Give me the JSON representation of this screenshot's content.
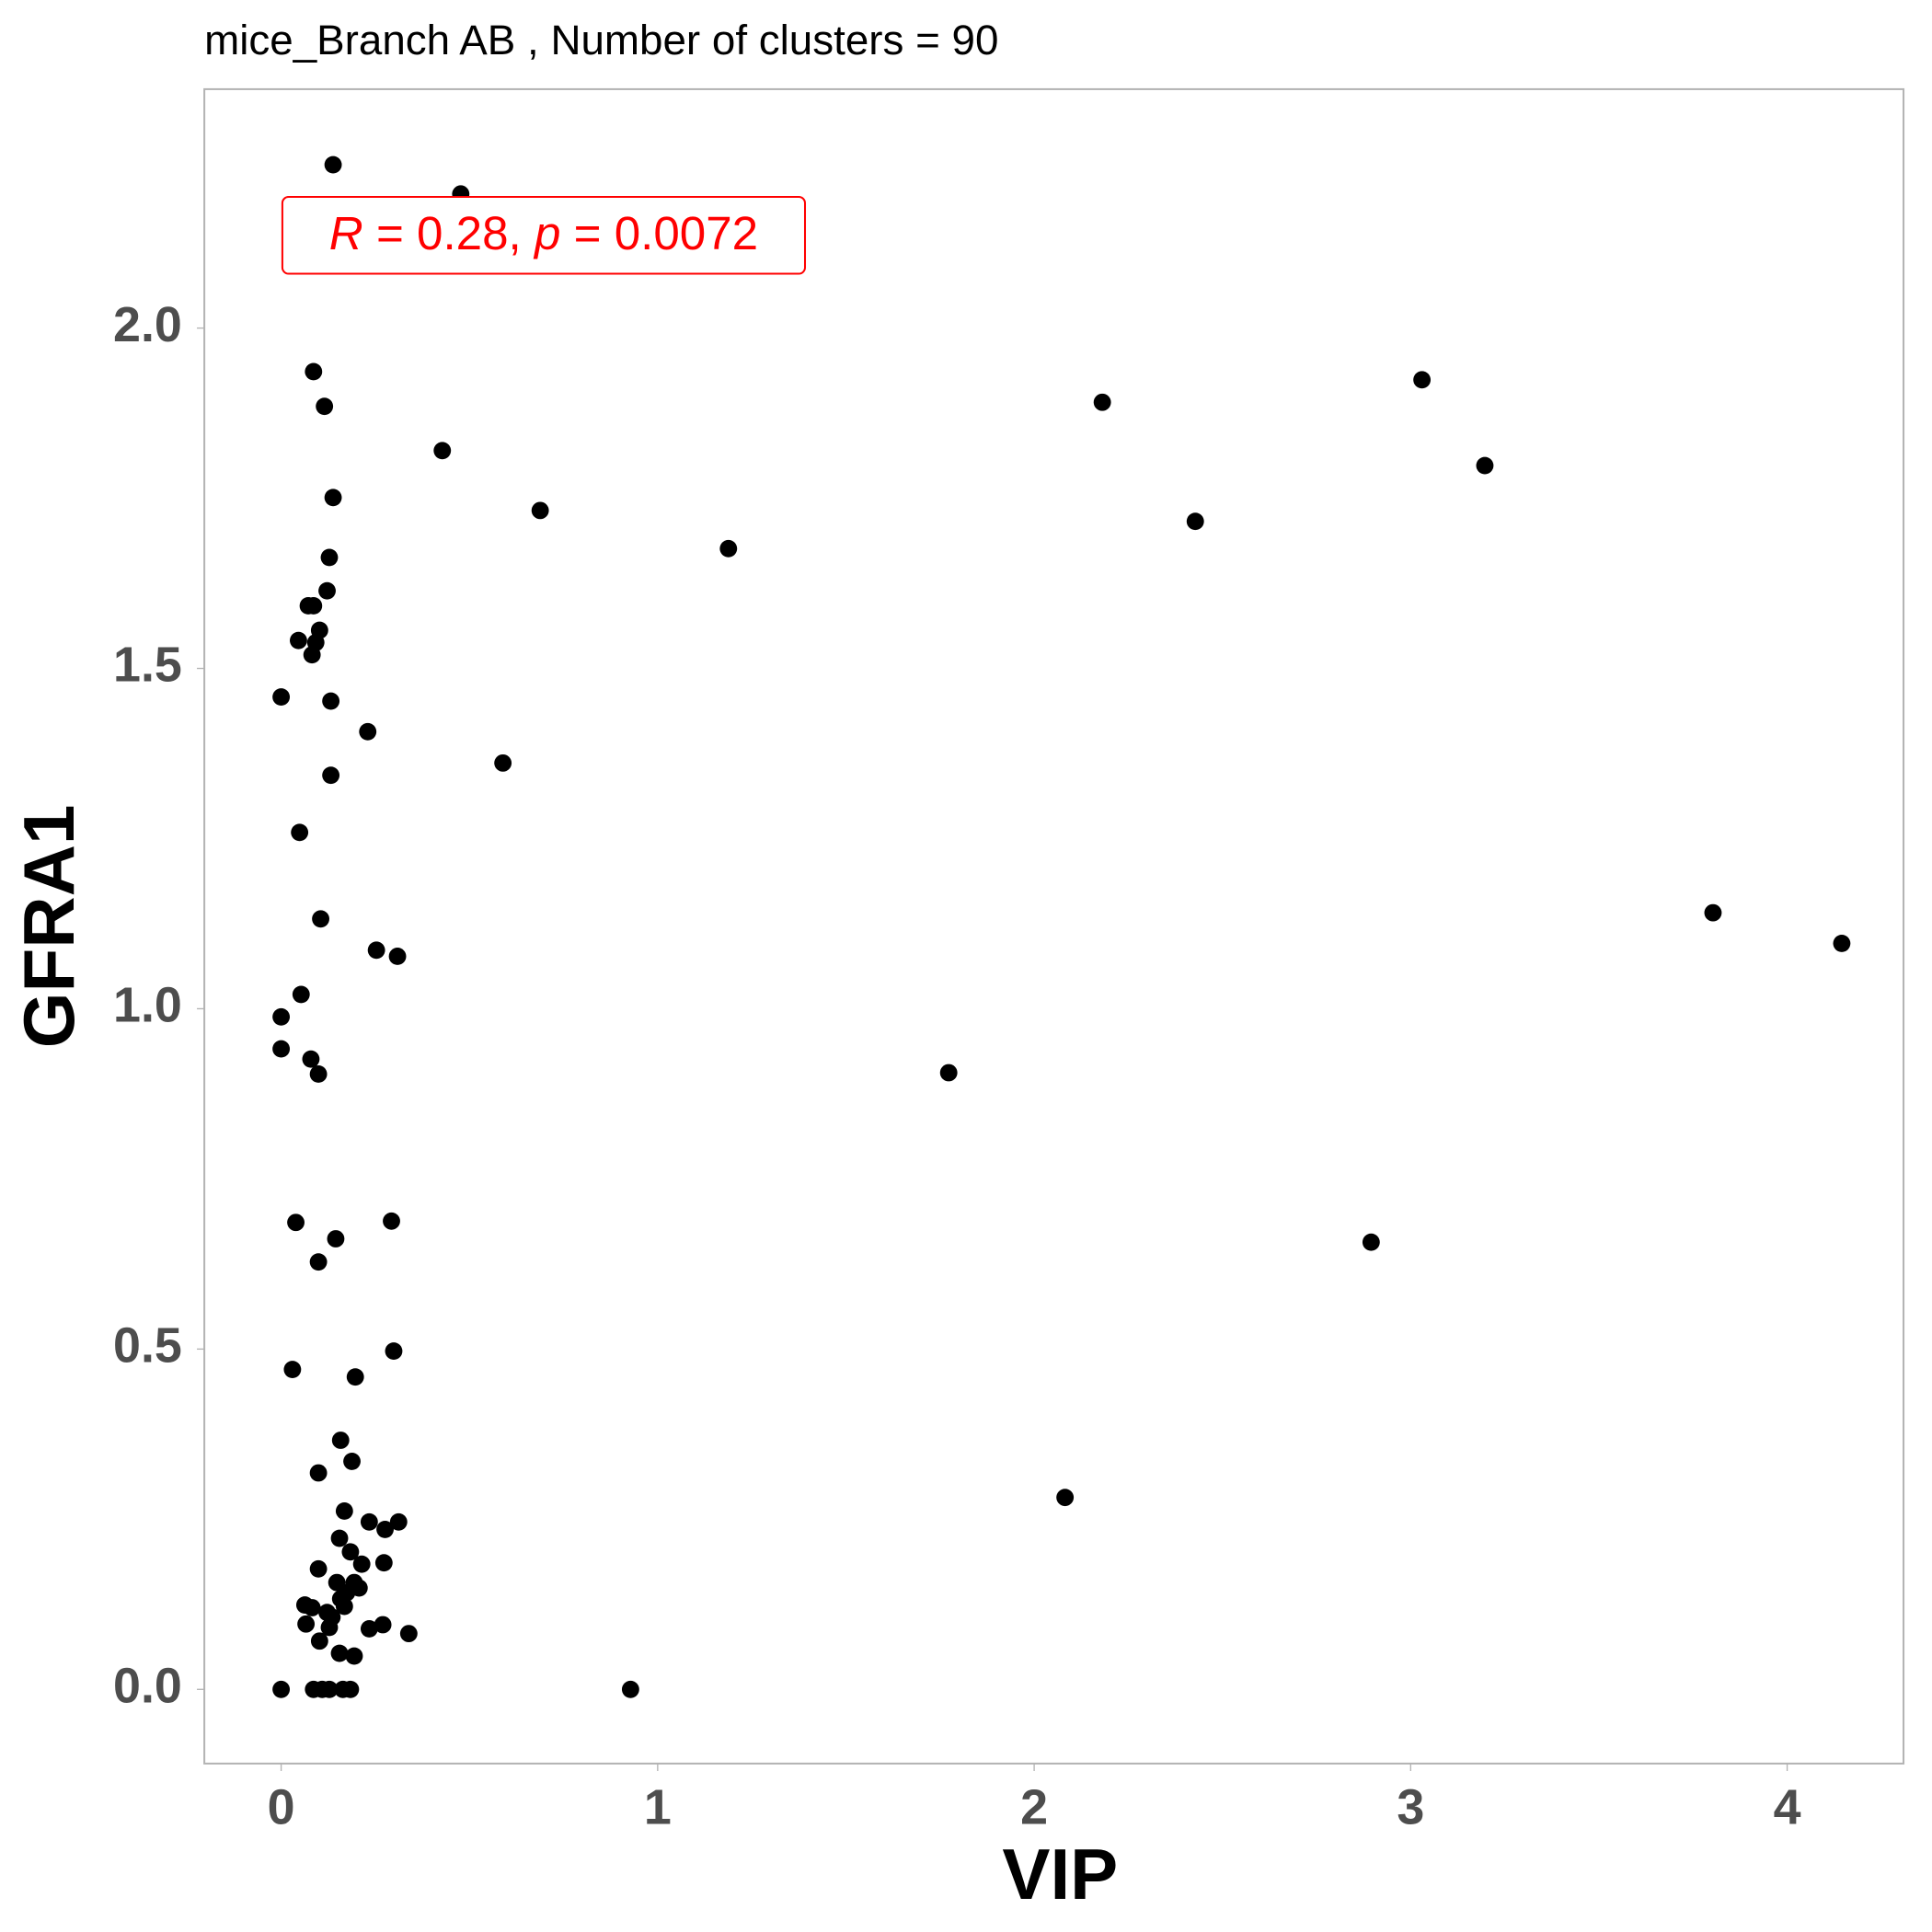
{
  "chart_data": {
    "type": "scatter",
    "title": "mice_Branch AB , Number of clusters =  90",
    "xlabel": "VIP",
    "ylabel": "GFRA1",
    "annotation": [
      "R",
      " = 0.28, ",
      "p",
      " = 0.0072"
    ],
    "annotation_color": "#ff0000",
    "color": "#000000",
    "grid": false,
    "xlim": [
      -0.204,
      4.309
    ],
    "ylim": [
      -0.109,
      2.351
    ],
    "xticks": [
      0,
      1,
      2,
      3,
      4
    ],
    "yticks": [
      {
        "value": 0,
        "label": "0.0"
      },
      {
        "value": 0.5,
        "label": "0.5"
      },
      {
        "value": 1,
        "label": "1.0"
      },
      {
        "value": 1.5,
        "label": "1.5"
      },
      {
        "value": 2,
        "label": "2.0"
      }
    ],
    "x": [
      0.138,
      0.477,
      0.086,
      0.115,
      0.428,
      0.138,
      0.688,
      1.188,
      0.128,
      0.122,
      0.072,
      0.086,
      0.102,
      0.046,
      0.092,
      0.082,
      0,
      0.132,
      0.23,
      0.589,
      0.132,
      0.049,
      0.105,
      0.253,
      0.309,
      0.053,
      0,
      0,
      0.079,
      0.099,
      0.039,
      0.293,
      0.145,
      0.099,
      0.299,
      0.03,
      0.197,
      0.158,
      0.188,
      0.099,
      0.168,
      0.312,
      0.234,
      0.276,
      0.155,
      0.184,
      0.273,
      0.214,
      0.099,
      0.194,
      0.148,
      0.207,
      0.174,
      0.158,
      0.063,
      0.082,
      0.168,
      0.122,
      0.066,
      0.135,
      0.128,
      0.27,
      0.234,
      0.339,
      0.102,
      0.155,
      0.194,
      0,
      0.086,
      0.109,
      0.128,
      0.164,
      0.184,
      0.928,
      2.181,
      2.428,
      3.03,
      3.197,
      3.803,
      4.145,
      1.773,
      2.895,
      2.082
    ],
    "y": [
      2.24,
      2.197,
      1.936,
      1.885,
      1.82,
      1.751,
      1.732,
      1.676,
      1.663,
      1.614,
      1.592,
      1.592,
      1.556,
      1.541,
      1.538,
      1.52,
      1.458,
      1.452,
      1.407,
      1.361,
      1.343,
      1.259,
      1.132,
      1.086,
      1.077,
      1.021,
      0.988,
      0.941,
      0.926,
      0.904,
      0.686,
      0.688,
      0.662,
      0.628,
      0.497,
      0.47,
      0.459,
      0.366,
      0.335,
      0.318,
      0.262,
      0.246,
      0.246,
      0.235,
      0.222,
      0.202,
      0.186,
      0.184,
      0.177,
      0.157,
      0.157,
      0.149,
      0.142,
      0.133,
      0.124,
      0.12,
      0.122,
      0.113,
      0.096,
      0.106,
      0.091,
      0.095,
      0.089,
      0.082,
      0.071,
      0.053,
      0.049,
      0,
      0,
      0,
      0,
      0,
      0,
      0,
      1.891,
      1.716,
      1.924,
      1.798,
      1.141,
      1.096,
      0.906,
      0.657,
      0.282
    ]
  }
}
